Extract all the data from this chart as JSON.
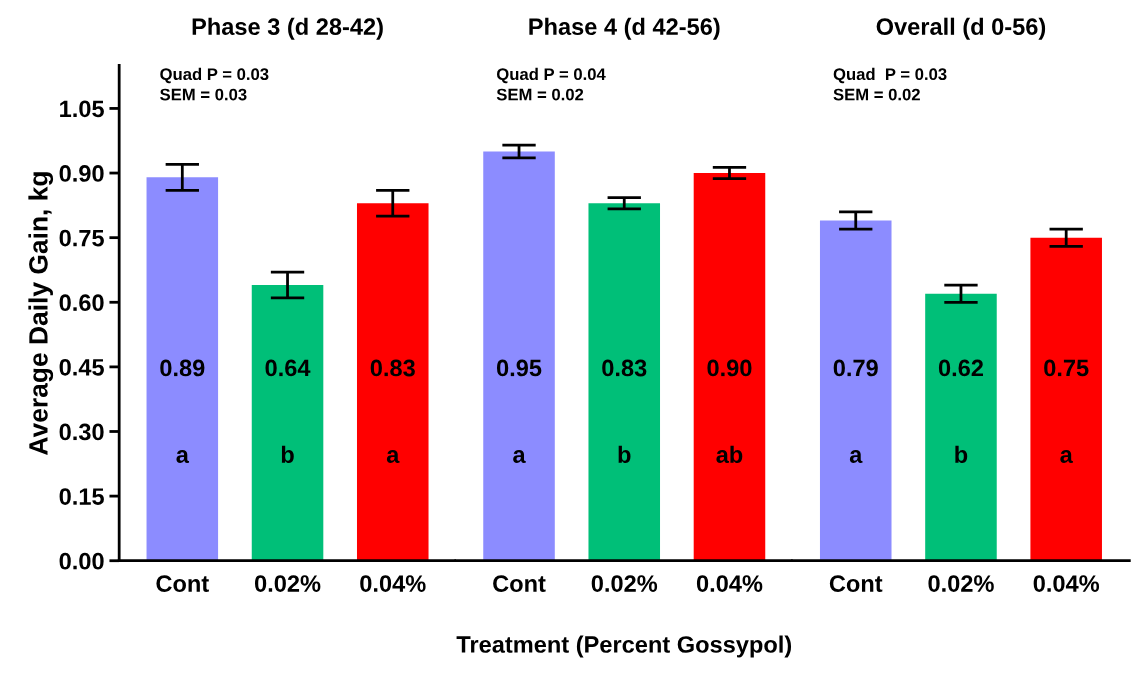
{
  "chart_data": [
    {
      "type": "bar",
      "title": "Phase 3 (d 28-42)",
      "ylabel": "Average Daily Gain, kg",
      "categories": [
        "Cont",
        "0.02%",
        "0.04%"
      ],
      "values": [
        0.89,
        0.64,
        0.83
      ],
      "errors": [
        0.03,
        0.03,
        0.03
      ],
      "colors": [
        "#8c8cff",
        "#00bf78",
        "#ff0000"
      ],
      "value_labels": [
        "0.89",
        "0.64",
        "0.83"
      ],
      "ylim": [
        0,
        1.15
      ],
      "yticks": [
        {
          "value": 0,
          "label": "0.00"
        },
        {
          "value": 0.15,
          "label": "0.15"
        },
        {
          "value": 0.3,
          "label": "0.30"
        },
        {
          "value": 0.45,
          "label": "0.45"
        },
        {
          "value": 0.6,
          "label": "0.60"
        },
        {
          "value": 0.75,
          "label": "0.75"
        },
        {
          "value": 0.9,
          "label": "0.90"
        },
        {
          "value": 1.05,
          "label": "1.05"
        }
      ],
      "annotations": [
        "Quad P = 0.03\nSEM = 0.03",
        "a",
        "b",
        "a"
      ]
    },
    {
      "type": "bar",
      "title": "Phase 4 (d 42-56)",
      "xlabel": "Treatment (Percent Gossypol)",
      "categories": [
        "Cont",
        "0.02%",
        "0.04%"
      ],
      "values": [
        0.95,
        0.83,
        0.9
      ],
      "errors": [
        0.015,
        0.013,
        0.013
      ],
      "colors": [
        "#8c8cff",
        "#00bf78",
        "#ff0000"
      ],
      "value_labels": [
        "0.95",
        "0.83",
        "0.90"
      ],
      "ylim": [
        0,
        1.15
      ],
      "tick_labels": "x",
      "annotations": [
        "Quad P = 0.04\nSEM = 0.02",
        "a",
        "b",
        "ab"
      ]
    },
    {
      "type": "bar",
      "title": "Overall (d 0-56)",
      "categories": [
        "Cont",
        "0.02%",
        "0.04%"
      ],
      "values": [
        0.79,
        0.62,
        0.75
      ],
      "errors": [
        0.02,
        0.02,
        0.02
      ],
      "colors": [
        "#8c8cff",
        "#00bf78",
        "#ff0000"
      ],
      "value_labels": [
        "0.79",
        "0.62",
        "0.75"
      ],
      "ylim": [
        0,
        1.15
      ],
      "tick_labels": "x",
      "annotations": [
        "Quad  P = 0.03\nSEM = 0.02",
        "a",
        "b",
        "a"
      ]
    }
  ]
}
